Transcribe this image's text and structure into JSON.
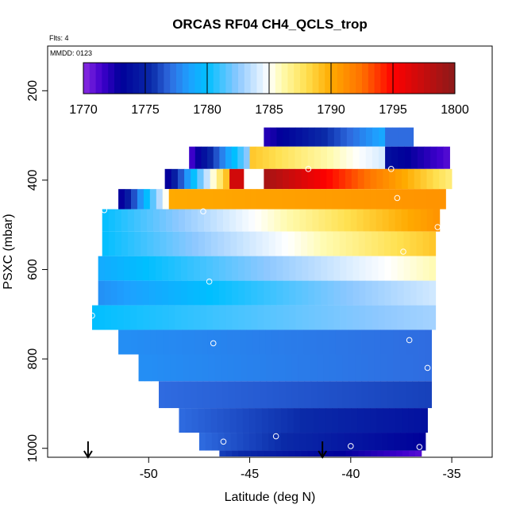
{
  "chart_data": {
    "type": "heatmap",
    "title": "ORCAS RF04 CH4_QCLS_trop",
    "flights_label": "Flts: 4",
    "date_label": "MMDD: 0123",
    "xlabel": "Latitude (deg N)",
    "ylabel": "PSXC (mbar)",
    "xlim": [
      -55,
      -33
    ],
    "ylim": [
      1020,
      100
    ],
    "x_ticks": [
      -50,
      -45,
      -40,
      -35
    ],
    "x_tick_labels": [
      "-50",
      "-45",
      "-40",
      "-35"
    ],
    "y_ticks": [
      200,
      400,
      600,
      800,
      1000
    ],
    "y_tick_labels": [
      "200",
      "400",
      "600",
      "800",
      "1000"
    ],
    "colorbar": {
      "min": 1770,
      "max": 1800,
      "ticks": [
        1770,
        1775,
        1780,
        1785,
        1790,
        1795,
        1800
      ],
      "tick_labels": [
        "1770",
        "1775",
        "1780",
        "1785",
        "1790",
        "1795",
        "1800"
      ],
      "stops": [
        {
          "value": 1770,
          "color": "#8a2be2"
        },
        {
          "value": 1771.5,
          "color": "#3f00cc"
        },
        {
          "value": 1773,
          "color": "#000099"
        },
        {
          "value": 1775.5,
          "color": "#0a2aa8"
        },
        {
          "value": 1777,
          "color": "#2f6ce0"
        },
        {
          "value": 1778.5,
          "color": "#1ea0ff"
        },
        {
          "value": 1780,
          "color": "#00bfff"
        },
        {
          "value": 1782.5,
          "color": "#8ec8ff"
        },
        {
          "value": 1785,
          "color": "#ffffff"
        },
        {
          "value": 1786,
          "color": "#fffbb0"
        },
        {
          "value": 1788,
          "color": "#ffe050"
        },
        {
          "value": 1790,
          "color": "#ffaa00"
        },
        {
          "value": 1792.5,
          "color": "#ff7000"
        },
        {
          "value": 1795,
          "color": "#ff0000"
        },
        {
          "value": 1800,
          "color": "#8b1a1a"
        }
      ]
    },
    "bands": [
      {
        "p": 300,
        "segments": [
          {
            "x0": -44.3,
            "x1": -38.3,
            "v0": 1772,
            "v1": 1779
          },
          {
            "x0": -38.3,
            "x1": -36.9,
            "v0": 1777,
            "v1": 1777
          }
        ]
      },
      {
        "p": 350,
        "segments": [
          {
            "x0": -48.0,
            "x1": -45.0,
            "v0": 1771,
            "v1": 1783
          },
          {
            "x0": -45.0,
            "x1": -38.3,
            "v0": 1789,
            "v1": 1784
          },
          {
            "x0": -38.3,
            "x1": -35.1,
            "v0": 1774,
            "v1": 1771
          }
        ]
      },
      {
        "p": 400,
        "segments": [
          {
            "x0": -49.2,
            "x1": -46.0,
            "v0": 1772,
            "v1": 1790
          },
          {
            "x0": -46.0,
            "x1": -45.3,
            "v0": 1797,
            "v1": 1797
          },
          {
            "x0": -44.3,
            "x1": -35.0,
            "v0": 1799,
            "v1": 1787
          }
        ]
      },
      {
        "p": 440,
        "segments": [
          {
            "x0": -51.5,
            "x1": -49.0,
            "v0": 1772,
            "v1": 1786
          },
          {
            "x0": -49.0,
            "x1": -35.3,
            "v0": 1790,
            "v1": 1791
          }
        ]
      },
      {
        "p": 490,
        "segments": [
          {
            "x0": -52.3,
            "x1": -35.6,
            "v0": 1780,
            "v1": 1791
          }
        ]
      },
      {
        "p": 540,
        "segments": [
          {
            "x0": -52.3,
            "x1": -35.8,
            "v0": 1780,
            "v1": 1789
          }
        ]
      },
      {
        "p": 600,
        "segments": [
          {
            "x0": -52.5,
            "x1": -35.8,
            "v0": 1779,
            "v1": 1786
          }
        ]
      },
      {
        "p": 650,
        "segments": [
          {
            "x0": -52.5,
            "x1": -35.8,
            "v0": 1778,
            "v1": 1784
          }
        ]
      },
      {
        "p": 710,
        "segments": [
          {
            "x0": -52.8,
            "x1": -35.8,
            "v0": 1780,
            "v1": 1783
          }
        ]
      },
      {
        "p": 760,
        "segments": [
          {
            "x0": -51.5,
            "x1": -36.0,
            "v0": 1778,
            "v1": 1777
          }
        ]
      },
      {
        "p": 820,
        "segments": [
          {
            "x0": -50.5,
            "x1": -36.0,
            "v0": 1778,
            "v1": 1777
          }
        ]
      },
      {
        "p": 880,
        "segments": [
          {
            "x0": -49.5,
            "x1": -36.0,
            "v0": 1777,
            "v1": 1776
          }
        ]
      },
      {
        "p": 940,
        "segments": [
          {
            "x0": -48.5,
            "x1": -36.2,
            "v0": 1777,
            "v1": 1774
          }
        ]
      },
      {
        "p": 990,
        "segments": [
          {
            "x0": -47.5,
            "x1": -36.3,
            "v0": 1777,
            "v1": 1773
          }
        ]
      },
      {
        "p": 1020,
        "segments": [
          {
            "x0": -46.5,
            "x1": -36.5,
            "v0": 1776,
            "v1": 1771
          }
        ]
      }
    ],
    "flight_points": [
      {
        "x": -42.1,
        "y": 375
      },
      {
        "x": -38.0,
        "y": 375
      },
      {
        "x": -37.7,
        "y": 440
      },
      {
        "x": -52.2,
        "y": 467
      },
      {
        "x": -47.3,
        "y": 470
      },
      {
        "x": -35.7,
        "y": 505
      },
      {
        "x": -37.4,
        "y": 560
      },
      {
        "x": -47.0,
        "y": 627
      },
      {
        "x": -52.8,
        "y": 703
      },
      {
        "x": -46.8,
        "y": 765
      },
      {
        "x": -37.1,
        "y": 758
      },
      {
        "x": -36.2,
        "y": 820
      },
      {
        "x": -43.7,
        "y": 973
      },
      {
        "x": -46.3,
        "y": 985
      },
      {
        "x": -40.0,
        "y": 995
      },
      {
        "x": -36.6,
        "y": 997
      }
    ],
    "arrows": [
      {
        "x": -53.0
      },
      {
        "x": -41.4
      }
    ]
  }
}
